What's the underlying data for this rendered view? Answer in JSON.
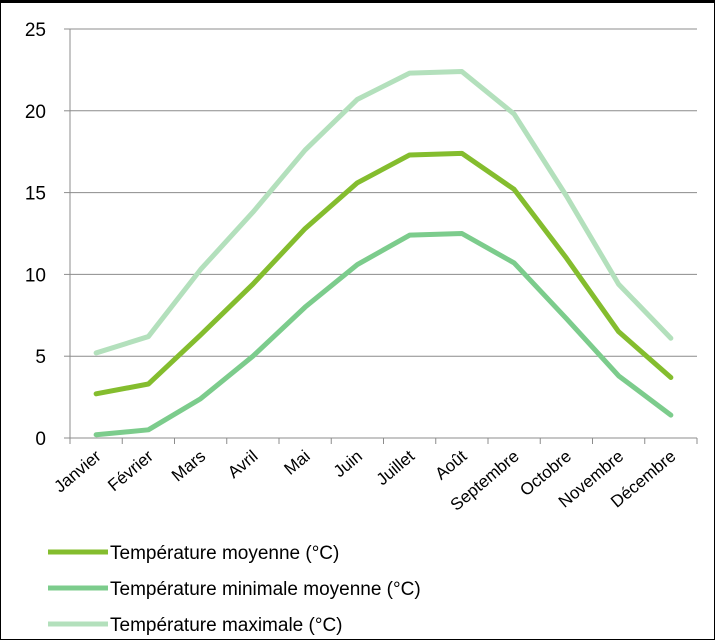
{
  "chart_data": {
    "type": "line",
    "title": "",
    "xlabel": "",
    "ylabel": "",
    "ylim": [
      0,
      25
    ],
    "yticks": [
      0,
      5,
      10,
      15,
      20,
      25
    ],
    "grid": "horizontal",
    "legend_position": "bottom-left",
    "categories": [
      "Janvier",
      "Février",
      "Mars",
      "Avril",
      "Mai",
      "Juin",
      "Juillet",
      "Août",
      "Septembre",
      "Octobre",
      "Novembre",
      "Décembre"
    ],
    "series": [
      {
        "name": "Température moyenne (°C)",
        "color": "#84bd2e",
        "values": [
          2.7,
          3.3,
          6.3,
          9.4,
          12.8,
          15.6,
          17.3,
          17.4,
          15.2,
          11.0,
          6.5,
          3.7
        ]
      },
      {
        "name": "Température minimale moyenne (°C)",
        "color": "#7ccc8c",
        "values": [
          0.2,
          0.5,
          2.4,
          5.0,
          8.0,
          10.6,
          12.4,
          12.5,
          10.7,
          7.3,
          3.8,
          1.4
        ]
      },
      {
        "name": "Température maximale (°C)",
        "color": "#b3e0bc",
        "values": [
          5.2,
          6.2,
          10.3,
          13.8,
          17.6,
          20.7,
          22.3,
          22.4,
          19.8,
          14.8,
          9.4,
          6.1
        ]
      }
    ]
  }
}
